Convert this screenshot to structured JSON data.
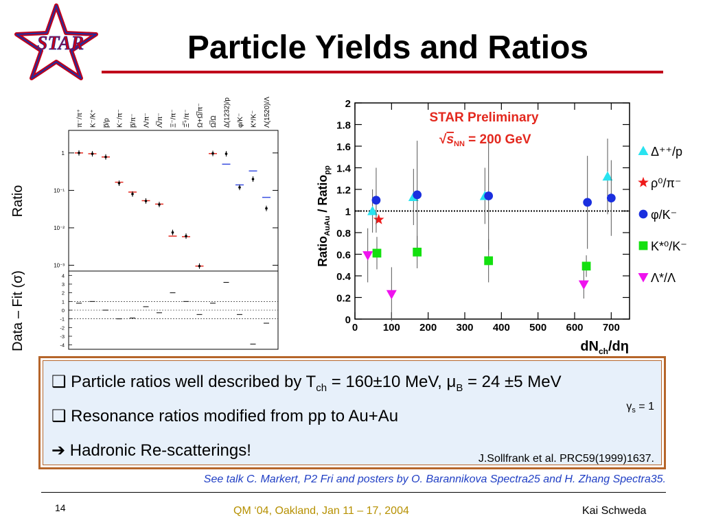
{
  "slide": {
    "title": "Particle Yields and Ratios",
    "logo_text": "STAR",
    "page_number": "14",
    "conference": "QM ‘04, Oakland, Jan 11 – 17, 2004",
    "author": "Kai Schweda",
    "footnote": "See talk C. Markert, P2 Fri and posters by O. Barannikova Spectra25 and H. Zhang Spectra35."
  },
  "info_box": {
    "bullet1": "❑ Particle ratios well described by T",
    "bullet1_sub": "ch",
    "bullet1_rest": " = 160±10 MeV, μ",
    "bullet1_sub2": "B",
    "bullet1_end": " = 24 ±5 MeV",
    "gamma": "γ",
    "gamma_sub": "s",
    "gamma_rest": " = 1",
    "bullet2": "❑ Resonance ratios modified from pp to Au+Au",
    "bullet3": "➔ Hadronic Re-scatterings!",
    "citation": "J.Sollfrank et al. PRC59(1999)1637."
  },
  "chart_data": [
    {
      "type": "scatter",
      "ylabel_top": "Ratio",
      "ylabel_bottom": "Data – Fit (σ)",
      "yscale": "log",
      "ylim": [
        0.0007,
        4
      ],
      "yticks": [
        "1",
        "10⁻¹",
        "10⁻²",
        "10⁻³"
      ],
      "categories": [
        "π⁻/π⁺",
        "K⁻/K⁺",
        "p̅/p",
        "K⁻/π⁻",
        "p̅/π⁻",
        "Λ/π⁻",
        "Λ̅/π⁻",
        "Ξ⁻/π⁻",
        "Ξ̅⁺/π⁻",
        "Ω+Ω̅/π⁻",
        "Ω̅/Ω",
        "Δ(1232)/p",
        "φ/K⁻",
        "K*/K⁻",
        "Λ(1520)/Λ"
      ],
      "data": [
        1.0,
        0.95,
        0.78,
        0.155,
        0.08,
        0.052,
        0.042,
        0.0075,
        0.006,
        0.00095,
        0.97,
        0.95,
        0.12,
        0.2,
        0.033
      ],
      "fit": [
        1.0,
        0.95,
        0.78,
        0.165,
        0.09,
        0.053,
        0.043,
        0.006,
        0.0058,
        0.00095,
        0.96,
        0.5,
        0.14,
        0.33,
        0.065
      ],
      "fit_colors": [
        "red",
        "red",
        "red",
        "red",
        "red",
        "red",
        "red",
        "red",
        "red",
        "red",
        "red",
        "blue",
        "blue",
        "blue",
        "blue"
      ],
      "resid_ylim": [
        -4.5,
        4.5
      ],
      "resid_ticks": [
        "4",
        "3",
        "2",
        "1",
        "0",
        "-1",
        "-2",
        "-3",
        "-4"
      ],
      "residuals": [
        0.8,
        1.0,
        0.0,
        -1.0,
        -0.9,
        0.4,
        -0.3,
        2.0,
        1.0,
        -0.5,
        0.8,
        3.2,
        -0.5,
        -3.9,
        -1.5
      ]
    },
    {
      "type": "scatter",
      "annotation": "STAR Preliminary",
      "annotation2_pre": "√",
      "annotation2_s": "s",
      "annotation2_sub": "NN",
      "annotation2_rest": " = 200 GeV",
      "ylabel": "Ratio",
      "ylabel_sub": "AuAu",
      "ylabel_mid": " / Ratio",
      "ylabel_sub2": "pp",
      "xlabel": "dN",
      "xlabel_sub": "ch",
      "xlabel_rest": "/dη",
      "xlim": [
        0,
        750
      ],
      "ylim": [
        0,
        2
      ],
      "xticks": [
        "0",
        "100",
        "200",
        "300",
        "400",
        "500",
        "600",
        "700"
      ],
      "yticks": [
        "0",
        "0.2",
        "0.4",
        "0.6",
        "0.8",
        "1",
        "1.2",
        "1.4",
        "1.6",
        "1.8",
        "2"
      ],
      "reference_line": 1.0,
      "series": [
        {
          "name": "Δ⁺⁺/p",
          "color": "#29e3f0",
          "marker": "triangle-up",
          "x": [
            48,
            160,
            355,
            690
          ],
          "y": [
            1.0,
            1.13,
            1.14,
            1.32
          ],
          "err": [
            0.2,
            0.26,
            0.26,
            0.35
          ]
        },
        {
          "name": "ρ⁰/π⁻",
          "color": "#ee1a1a",
          "marker": "star",
          "x": [
            65
          ],
          "y": [
            0.92
          ],
          "err": [
            0.0
          ]
        },
        {
          "name": "φ/K⁻",
          "color": "#1a2fdf",
          "marker": "circle",
          "x": [
            58,
            170,
            365,
            635,
            700
          ],
          "y": [
            1.1,
            1.15,
            1.14,
            1.08,
            1.12
          ],
          "err": [
            0.3,
            0.5,
            0.5,
            0.43,
            0.35
          ]
        },
        {
          "name": "K*⁰/K⁻",
          "color": "#13e00f",
          "marker": "square",
          "x": [
            60,
            170,
            365,
            632
          ],
          "y": [
            0.61,
            0.62,
            0.54,
            0.49
          ],
          "err": [
            0.15,
            0.15,
            0.2,
            0.1
          ]
        },
        {
          "name": "Λ*/Λ",
          "color": "#ef13ee",
          "marker": "triangle-down",
          "x": [
            35,
            100,
            625
          ],
          "y": [
            0.59,
            0.23,
            0.32
          ],
          "err": [
            0.25,
            0.25,
            0.13
          ]
        }
      ]
    }
  ]
}
